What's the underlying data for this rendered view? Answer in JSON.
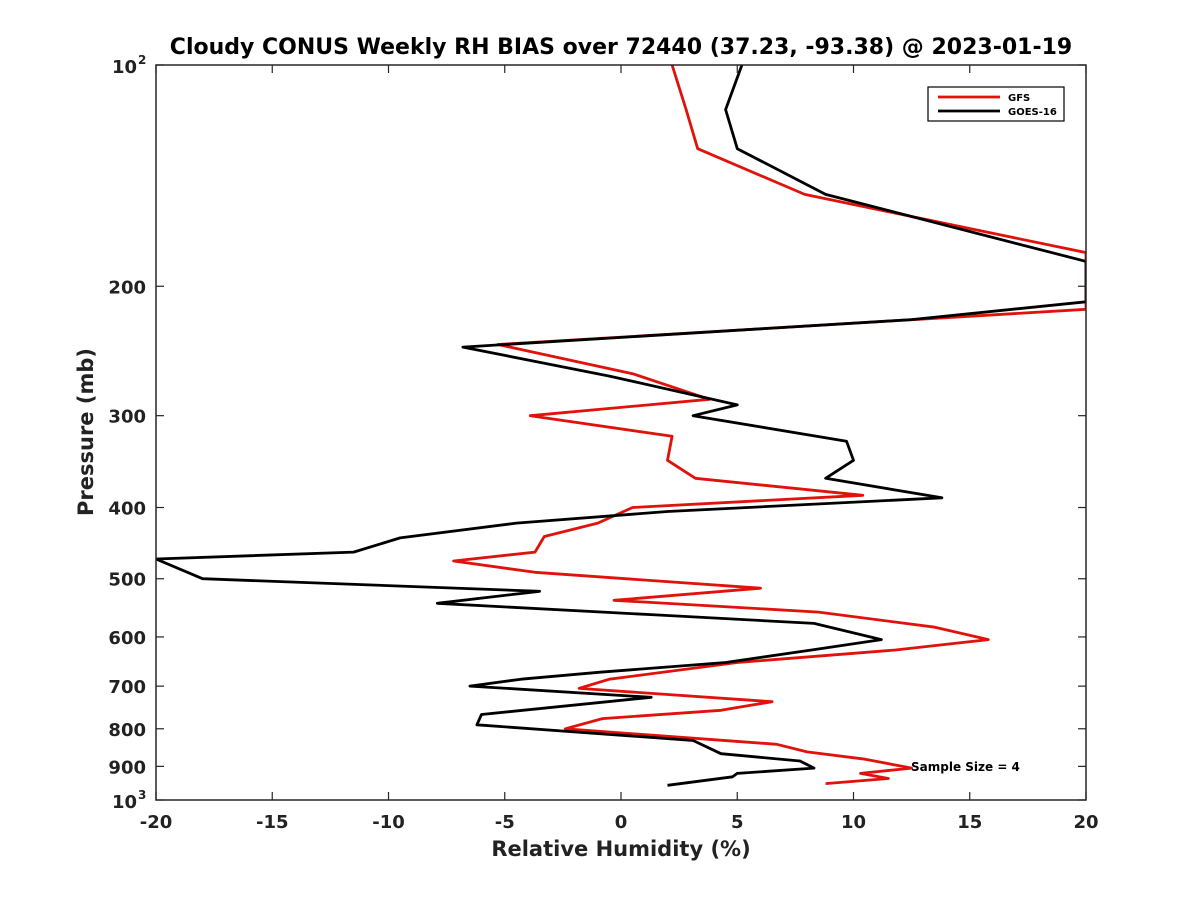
{
  "chart_data": {
    "type": "line",
    "title": "Cloudy CONUS Weekly RH BIAS over 72440 (37.23, -93.38) @ 2023-01-19",
    "xlabel": "Relative Humidity (%)",
    "ylabel": "Pressure (mb)",
    "xlim": [
      -20,
      20
    ],
    "ylim": [
      100,
      1000
    ],
    "yscale": "log",
    "y_reversed": true,
    "grid": false,
    "legend_position": "top-right",
    "x_ticks": [
      "-20",
      "-15",
      "-10",
      "-5",
      "0",
      "5",
      "10",
      "15",
      "20"
    ],
    "y_ticks": [
      {
        "value": 100,
        "base": "10",
        "exp": "2"
      },
      {
        "value": 200,
        "label": "200"
      },
      {
        "value": 300,
        "label": "300"
      },
      {
        "value": 400,
        "label": "400"
      },
      {
        "value": 500,
        "label": "500"
      },
      {
        "value": 600,
        "label": "600"
      },
      {
        "value": 700,
        "label": "700"
      },
      {
        "value": 800,
        "label": "800"
      },
      {
        "value": 900,
        "label": "900"
      },
      {
        "value": 1000,
        "base": "10",
        "exp": "3"
      }
    ],
    "annotation": "Sample Size = 4",
    "series": [
      {
        "name": "GFS",
        "color": "#e0120b",
        "points": [
          [
            2.2,
            100
          ],
          [
            2.8,
            115
          ],
          [
            3.3,
            130
          ],
          [
            7.9,
            150
          ],
          [
            20,
            180
          ],
          [
            20,
            215
          ],
          [
            -5.3,
            240
          ],
          [
            0.5,
            263
          ],
          [
            3.8,
            285
          ],
          [
            -3.9,
            300
          ],
          [
            2.2,
            320
          ],
          [
            2.0,
            345
          ],
          [
            3.2,
            365
          ],
          [
            10.4,
            385
          ],
          [
            0.5,
            400
          ],
          [
            -1.0,
            420
          ],
          [
            -3.3,
            438
          ],
          [
            -3.7,
            460
          ],
          [
            -7.2,
            473
          ],
          [
            -3.7,
            490
          ],
          [
            6.0,
            515
          ],
          [
            -0.3,
            535
          ],
          [
            8.5,
            555
          ],
          [
            13.5,
            582
          ],
          [
            15.8,
            605
          ],
          [
            11.8,
            625
          ],
          [
            5.0,
            650
          ],
          [
            -0.5,
            685
          ],
          [
            -1.8,
            705
          ],
          [
            6.5,
            735
          ],
          [
            4.3,
            755
          ],
          [
            -0.8,
            775
          ],
          [
            -2.4,
            800
          ],
          [
            6.7,
            840
          ],
          [
            8.0,
            860
          ],
          [
            10.5,
            880
          ],
          [
            12.5,
            905
          ],
          [
            10.3,
            920
          ],
          [
            11.5,
            935
          ],
          [
            8.8,
            950
          ]
        ]
      },
      {
        "name": "GOES-16",
        "color": "#000000",
        "points": [
          [
            5.2,
            100
          ],
          [
            4.5,
            115
          ],
          [
            5.0,
            130
          ],
          [
            8.8,
            150
          ],
          [
            20,
            185
          ],
          [
            20,
            210
          ],
          [
            12.5,
            222
          ],
          [
            -6.8,
            242
          ],
          [
            -0.5,
            265
          ],
          [
            5.0,
            290
          ],
          [
            3.1,
            300
          ],
          [
            9.7,
            325
          ],
          [
            10.0,
            345
          ],
          [
            8.8,
            365
          ],
          [
            13.8,
            388
          ],
          [
            2.0,
            405
          ],
          [
            -4.5,
            420
          ],
          [
            -9.5,
            440
          ],
          [
            -11.5,
            460
          ],
          [
            -20,
            470
          ],
          [
            -18,
            500
          ],
          [
            -3.5,
            520
          ],
          [
            -7.9,
            540
          ],
          [
            1.5,
            560
          ],
          [
            8.3,
            575
          ],
          [
            11.2,
            605
          ],
          [
            8.2,
            625
          ],
          [
            4.5,
            650
          ],
          [
            -0.9,
            670
          ],
          [
            -4.3,
            685
          ],
          [
            -6.5,
            700
          ],
          [
            1.3,
            725
          ],
          [
            -6.0,
            765
          ],
          [
            -6.2,
            790
          ],
          [
            3.1,
            830
          ],
          [
            4.3,
            865
          ],
          [
            7.7,
            885
          ],
          [
            8.3,
            905
          ],
          [
            5.0,
            920
          ],
          [
            4.8,
            930
          ],
          [
            2.0,
            955
          ]
        ]
      }
    ]
  }
}
